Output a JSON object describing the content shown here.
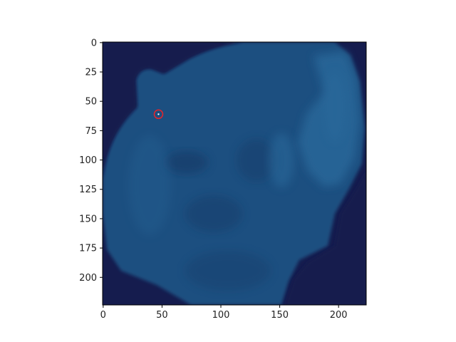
{
  "chart_data": {
    "type": "image",
    "title": "",
    "xlabel": "",
    "ylabel": "",
    "xlim": [
      0,
      224
    ],
    "ylim": [
      224,
      0
    ],
    "x_ticks": [
      0,
      50,
      100,
      150,
      200
    ],
    "y_ticks": [
      0,
      25,
      50,
      75,
      100,
      125,
      150,
      175,
      200
    ],
    "x_tick_labels": [
      "0",
      "50",
      "100",
      "150",
      "200"
    ],
    "y_tick_labels": [
      "0",
      "25",
      "50",
      "75",
      "100",
      "125",
      "150",
      "175",
      "200"
    ],
    "grid": false,
    "image_description": "dark navy background with a large blue-tinted organic blob (microscopy-like specimen) occupying most of the frame",
    "marker": {
      "shape": "circle",
      "x": 47,
      "y": 61,
      "color": "#e8242a",
      "center_dot_color": "#ffffff"
    }
  },
  "colors": {
    "background": "#151c4e",
    "specimen_base": "#1d4f80",
    "specimen_light": "#2c6a9c",
    "specimen_dark": "#163a68",
    "axis": "#000000"
  }
}
